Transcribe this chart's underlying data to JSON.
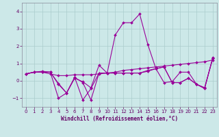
{
  "xlabel": "Windchill (Refroidissement éolien,°C)",
  "background_color": "#cce8e8",
  "grid_color": "#aacccc",
  "line_color": "#990099",
  "text_color": "#660066",
  "xlim": [
    -0.5,
    23.5
  ],
  "ylim": [
    -1.5,
    4.5
  ],
  "yticks": [
    -1,
    0,
    1,
    2,
    3,
    4
  ],
  "xticks": [
    0,
    1,
    2,
    3,
    4,
    5,
    6,
    7,
    8,
    9,
    10,
    11,
    12,
    13,
    14,
    15,
    16,
    17,
    18,
    19,
    20,
    21,
    22,
    23
  ],
  "series": [
    [
      0.4,
      0.5,
      0.5,
      0.5,
      -0.2,
      -0.7,
      0.15,
      -0.05,
      -0.4,
      0.9,
      0.45,
      0.45,
      0.45,
      0.45,
      0.45,
      0.6,
      0.7,
      0.8,
      -0.1,
      -0.1,
      0.15,
      -0.2,
      -0.4,
      1.3
    ],
    [
      0.4,
      0.5,
      0.55,
      0.5,
      -0.15,
      -0.7,
      0.2,
      -0.1,
      -1.1,
      0.45,
      0.45,
      2.65,
      3.35,
      3.35,
      3.85,
      2.1,
      0.7,
      -0.1,
      -0.05,
      0.5,
      0.5,
      -0.2,
      -0.45,
      1.35
    ],
    [
      0.4,
      0.5,
      0.5,
      0.5,
      -1.0,
      -0.7,
      0.2,
      -1.1,
      -0.45,
      0.45,
      0.45,
      0.45,
      0.45,
      0.45,
      0.45,
      0.55,
      0.7,
      0.8,
      -0.1,
      -0.1,
      0.15,
      -0.2,
      -0.4,
      1.3
    ],
    [
      0.4,
      0.5,
      0.5,
      0.4,
      0.3,
      0.3,
      0.35,
      0.35,
      0.35,
      0.4,
      0.45,
      0.5,
      0.6,
      0.65,
      0.7,
      0.75,
      0.8,
      0.85,
      0.9,
      0.95,
      1.0,
      1.05,
      1.1,
      1.2
    ]
  ],
  "tick_fontsize": 5,
  "xlabel_fontsize": 5.5,
  "marker_size": 2.0,
  "line_width": 0.8
}
